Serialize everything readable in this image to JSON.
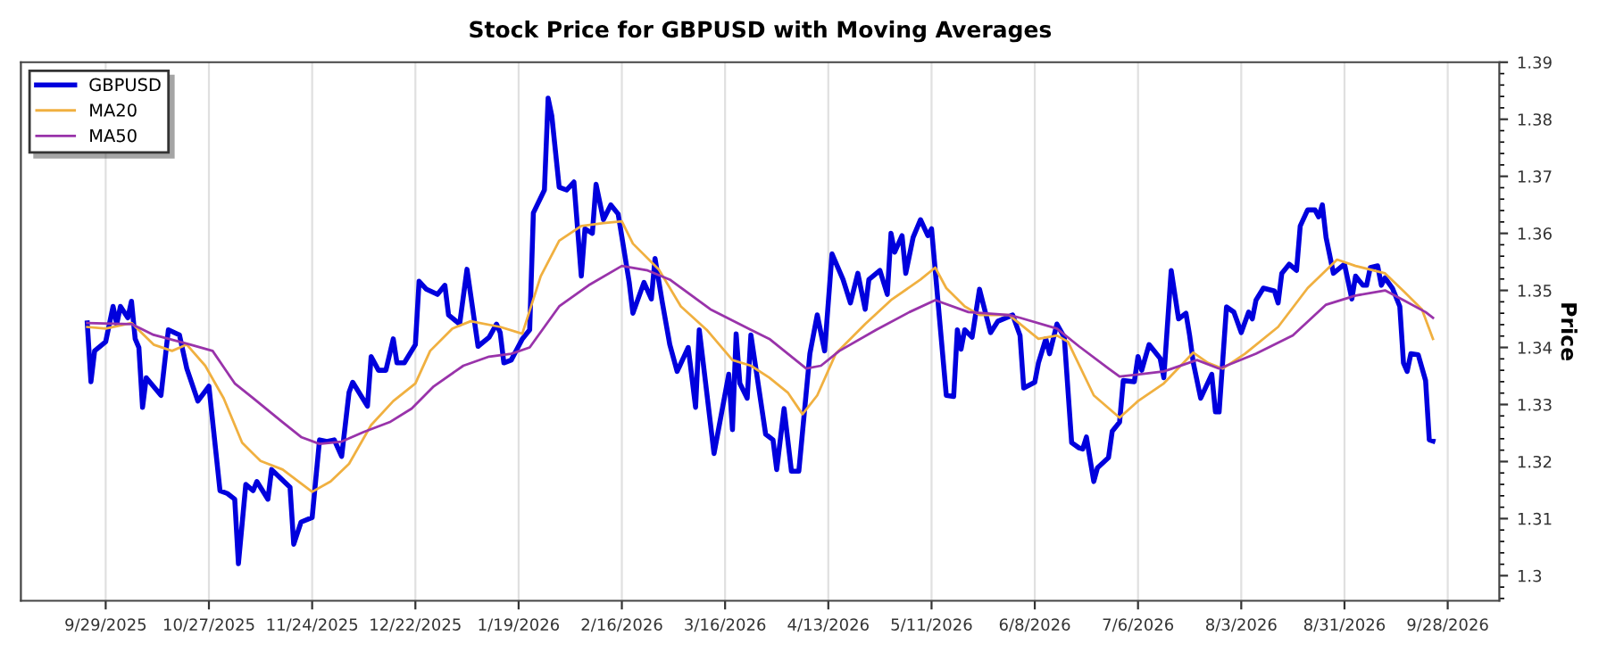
{
  "chart_data": {
    "type": "line",
    "title": "Stock Price for GBPUSD with Moving Averages",
    "ylabel": "Price",
    "xlim": [
      "2025-09-06",
      "2026-10-12"
    ],
    "ylim": [
      1.2956,
      1.39
    ],
    "xticks": [
      {
        "value": "2025-09-29",
        "label": "9/29/2025"
      },
      {
        "value": "2025-10-27",
        "label": "10/27/2025"
      },
      {
        "value": "2025-11-24",
        "label": "11/24/2025"
      },
      {
        "value": "2025-12-22",
        "label": "12/22/2025"
      },
      {
        "value": "2026-01-19",
        "label": "1/19/2026"
      },
      {
        "value": "2026-02-16",
        "label": "2/16/2026"
      },
      {
        "value": "2026-03-16",
        "label": "3/16/2026"
      },
      {
        "value": "2026-04-13",
        "label": "4/13/2026"
      },
      {
        "value": "2026-05-11",
        "label": "5/11/2026"
      },
      {
        "value": "2026-06-08",
        "label": "6/8/2026"
      },
      {
        "value": "2026-07-06",
        "label": "7/6/2026"
      },
      {
        "value": "2026-08-03",
        "label": "8/3/2026"
      },
      {
        "value": "2026-08-31",
        "label": "8/31/2026"
      },
      {
        "value": "2026-09-28",
        "label": "9/28/2026"
      }
    ],
    "yticks": [
      1.3,
      1.31,
      1.32,
      1.33,
      1.34,
      1.35,
      1.36,
      1.37,
      1.38,
      1.39
    ],
    "grid": "x",
    "legend": "top left",
    "series": [
      {
        "name": "GBPUSD",
        "color": "#0000dd",
        "x": [
          "2025-09-24",
          "2025-09-25",
          "2025-09-26",
          "2025-09-29",
          "2025-10-01",
          "2025-10-02",
          "2025-10-03",
          "2025-10-05",
          "2025-10-06",
          "2025-10-07",
          "2025-10-08",
          "2025-10-09",
          "2025-10-10",
          "2025-10-14",
          "2025-10-16",
          "2025-10-19",
          "2025-10-21",
          "2025-10-24",
          "2025-10-27",
          "2025-10-30",
          "2025-11-01",
          "2025-11-03",
          "2025-11-04",
          "2025-11-06",
          "2025-11-08",
          "2025-11-09",
          "2025-11-12",
          "2025-11-13",
          "2025-11-18",
          "2025-11-19",
          "2025-11-21",
          "2025-11-24",
          "2025-11-26",
          "2025-11-28",
          "2025-11-30",
          "2025-12-02",
          "2025-12-04",
          "2025-12-05",
          "2025-12-09",
          "2025-12-10",
          "2025-12-12",
          "2025-12-14",
          "2025-12-16",
          "2025-12-17",
          "2025-12-19",
          "2025-12-22",
          "2025-12-23",
          "2025-12-25",
          "2025-12-28",
          "2025-12-30",
          "2025-12-31",
          "2026-01-03",
          "2026-01-05",
          "2026-01-08",
          "2026-01-11",
          "2026-01-13",
          "2026-01-14",
          "2026-01-15",
          "2026-01-17",
          "2026-01-20",
          "2026-01-22",
          "2026-01-23",
          "2026-01-26",
          "2026-01-27",
          "2026-01-28",
          "2026-01-30",
          "2026-02-01",
          "2026-02-03",
          "2026-02-05",
          "2026-02-06",
          "2026-02-08",
          "2026-02-09",
          "2026-02-11",
          "2026-02-13",
          "2026-02-15",
          "2026-02-18",
          "2026-02-19",
          "2026-02-22",
          "2026-02-24",
          "2026-02-25",
          "2026-02-27",
          "2026-03-01",
          "2026-03-03",
          "2026-03-06",
          "2026-03-08",
          "2026-03-09",
          "2026-03-13",
          "2026-03-17",
          "2026-03-18",
          "2026-03-19",
          "2026-03-20",
          "2026-03-22",
          "2026-03-23",
          "2026-03-27",
          "2026-03-29",
          "2026-03-30",
          "2026-04-01",
          "2026-04-03",
          "2026-04-05",
          "2026-04-08",
          "2026-04-10",
          "2026-04-12",
          "2026-04-14",
          "2026-04-17",
          "2026-04-19",
          "2026-04-21",
          "2026-04-23",
          "2026-04-24",
          "2026-04-27",
          "2026-04-29",
          "2026-04-30",
          "2026-05-01",
          "2026-05-03",
          "2026-05-04",
          "2026-05-06",
          "2026-05-08",
          "2026-05-10",
          "2026-05-11",
          "2026-05-15",
          "2026-05-17",
          "2026-05-18",
          "2026-05-19",
          "2026-05-20",
          "2026-05-22",
          "2026-05-24",
          "2026-05-27",
          "2026-05-29",
          "2026-06-02",
          "2026-06-04",
          "2026-06-05",
          "2026-06-08",
          "2026-06-09",
          "2026-06-11",
          "2026-06-12",
          "2026-06-14",
          "2026-06-16",
          "2026-06-18",
          "2026-06-20",
          "2026-06-21",
          "2026-06-22",
          "2026-06-24",
          "2026-06-25",
          "2026-06-28",
          "2026-06-29",
          "2026-07-01",
          "2026-07-02",
          "2026-07-05",
          "2026-07-06",
          "2026-07-07",
          "2026-07-09",
          "2026-07-12",
          "2026-07-13",
          "2026-07-15",
          "2026-07-17",
          "2026-07-19",
          "2026-07-20",
          "2026-07-21",
          "2026-07-23",
          "2026-07-26",
          "2026-07-27",
          "2026-07-28",
          "2026-07-30",
          "2026-08-01",
          "2026-08-03",
          "2026-08-05",
          "2026-08-06",
          "2026-08-07",
          "2026-08-09",
          "2026-08-12",
          "2026-08-13",
          "2026-08-14",
          "2026-08-16",
          "2026-08-18",
          "2026-08-19",
          "2026-08-21",
          "2026-08-23",
          "2026-08-24",
          "2026-08-25",
          "2026-08-26",
          "2026-08-28",
          "2026-08-31",
          "2026-09-02",
          "2026-09-03",
          "2026-09-05",
          "2026-09-06",
          "2026-09-07",
          "2026-09-09",
          "2026-09-10",
          "2026-09-11",
          "2026-09-13",
          "2026-09-15",
          "2026-09-16",
          "2026-09-17",
          "2026-09-18",
          "2026-09-20",
          "2026-09-22",
          "2026-09-23",
          "2026-09-24"
        ],
        "values": [
          1.3443,
          1.334,
          1.3394,
          1.341,
          1.3472,
          1.3441,
          1.3472,
          1.3452,
          1.3481,
          1.3415,
          1.34,
          1.3295,
          1.3347,
          1.3316,
          1.3431,
          1.3422,
          1.3363,
          1.3306,
          1.3332,
          1.3149,
          1.3144,
          1.3134,
          1.3021,
          1.316,
          1.3149,
          1.3165,
          1.3134,
          1.3186,
          1.3155,
          1.3055,
          1.3094,
          1.3102,
          1.3238,
          1.3235,
          1.3238,
          1.3209,
          1.3321,
          1.3339,
          1.3297,
          1.3384,
          1.336,
          1.336,
          1.3415,
          1.3373,
          1.3373,
          1.3405,
          1.3516,
          1.3502,
          1.3493,
          1.3509,
          1.3457,
          1.3441,
          1.3537,
          1.3402,
          1.3418,
          1.3441,
          1.3426,
          1.3373,
          1.3378,
          1.3415,
          1.3431,
          1.3636,
          1.3676,
          1.3837,
          1.3806,
          1.3681,
          1.3676,
          1.369,
          1.3525,
          1.3608,
          1.36,
          1.3686,
          1.3624,
          1.365,
          1.3634,
          1.3514,
          1.346,
          1.3514,
          1.3485,
          1.3556,
          1.3478,
          1.3405,
          1.3358,
          1.34,
          1.3295,
          1.3431,
          1.3214,
          1.3353,
          1.3256,
          1.3424,
          1.3337,
          1.3311,
          1.3422,
          1.3248,
          1.3238,
          1.3186,
          1.3293,
          1.3183,
          1.3183,
          1.3389,
          1.3457,
          1.3394,
          1.3564,
          1.3519,
          1.3478,
          1.353,
          1.3467,
          1.3519,
          1.3535,
          1.3493,
          1.36,
          1.3567,
          1.3596,
          1.353,
          1.3593,
          1.3624,
          1.3596,
          1.3608,
          1.3316,
          1.3314,
          1.3431,
          1.3397,
          1.3431,
          1.3418,
          1.3502,
          1.3426,
          1.3446,
          1.3457,
          1.3421,
          1.3329,
          1.3339,
          1.3373,
          1.3415,
          1.3389,
          1.3441,
          1.3418,
          1.3233,
          1.3224,
          1.3222,
          1.3243,
          1.3165,
          1.3189,
          1.3207,
          1.3253,
          1.3269,
          1.3342,
          1.334,
          1.3384,
          1.336,
          1.3405,
          1.3381,
          1.3347,
          1.3535,
          1.345,
          1.346,
          1.3421,
          1.3373,
          1.3311,
          1.3353,
          1.3287,
          1.3287,
          1.3471,
          1.3462,
          1.3426,
          1.3462,
          1.345,
          1.3483,
          1.3504,
          1.3499,
          1.3478,
          1.353,
          1.3546,
          1.3535,
          1.3613,
          1.3641,
          1.3641,
          1.3629,
          1.365,
          1.3593,
          1.353,
          1.3546,
          1.3485,
          1.3525,
          1.3509,
          1.3509,
          1.354,
          1.3543,
          1.3509,
          1.3522,
          1.3504,
          1.3472,
          1.3373,
          1.3358,
          1.3389,
          1.3387,
          1.3342,
          1.3238,
          1.3236
        ]
      },
      {
        "name": "MA20",
        "color": "#f0b040",
        "x": [
          "2025-09-24",
          "2025-09-29",
          "2025-10-06",
          "2025-10-12",
          "2025-10-17",
          "2025-10-21",
          "2025-10-26",
          "2025-10-31",
          "2025-11-05",
          "2025-11-10",
          "2025-11-16",
          "2025-11-24",
          "2025-11-29",
          "2025-12-04",
          "2025-12-10",
          "2025-12-16",
          "2025-12-22",
          "2025-12-26",
          "2026-01-01",
          "2026-01-06",
          "2026-01-14",
          "2026-01-20",
          "2026-01-25",
          "2026-01-30",
          "2026-02-05",
          "2026-02-11",
          "2026-02-16",
          "2026-02-19",
          "2026-02-26",
          "2026-03-04",
          "2026-03-11",
          "2026-03-18",
          "2026-03-23",
          "2026-03-28",
          "2026-04-02",
          "2026-04-06",
          "2026-04-10",
          "2026-04-15",
          "2026-04-23",
          "2026-04-30",
          "2026-05-08",
          "2026-05-12",
          "2026-05-15",
          "2026-05-20",
          "2026-05-24",
          "2026-06-01",
          "2026-06-09",
          "2026-06-14",
          "2026-06-17",
          "2026-06-24",
          "2026-07-01",
          "2026-07-06",
          "2026-07-13",
          "2026-07-21",
          "2026-07-25",
          "2026-07-29",
          "2026-08-04",
          "2026-08-13",
          "2026-08-21",
          "2026-08-29",
          "2026-09-03",
          "2026-09-11",
          "2026-09-16",
          "2026-09-21",
          "2026-09-24"
        ],
        "values": [
          1.3436,
          1.3433,
          1.3443,
          1.3405,
          1.3394,
          1.3405,
          1.3368,
          1.3311,
          1.3233,
          1.3201,
          1.3186,
          1.3147,
          1.3165,
          1.3196,
          1.3264,
          1.3306,
          1.3337,
          1.3394,
          1.3433,
          1.3446,
          1.3436,
          1.3424,
          1.3525,
          1.3587,
          1.3613,
          1.3618,
          1.3621,
          1.3582,
          1.3537,
          1.3472,
          1.3431,
          1.3378,
          1.3368,
          1.3347,
          1.3321,
          1.3283,
          1.3316,
          1.3389,
          1.3441,
          1.3483,
          1.3519,
          1.354,
          1.3504,
          1.3472,
          1.3457,
          1.3457,
          1.3415,
          1.3421,
          1.341,
          1.3316,
          1.3277,
          1.3306,
          1.3337,
          1.3391,
          1.3373,
          1.3363,
          1.3389,
          1.3436,
          1.3504,
          1.3554,
          1.3543,
          1.353,
          1.3499,
          1.3467,
          1.3415
        ]
      },
      {
        "name": "MA50",
        "color": "#9933aa",
        "x": [
          "2025-09-24",
          "2025-10-06",
          "2025-10-12",
          "2025-10-22",
          "2025-10-28",
          "2025-11-03",
          "2025-11-08",
          "2025-11-16",
          "2025-11-21",
          "2025-11-26",
          "2025-12-02",
          "2025-12-08",
          "2025-12-15",
          "2025-12-21",
          "2025-12-27",
          "2026-01-04",
          "2026-01-11",
          "2026-01-17",
          "2026-01-22",
          "2026-01-30",
          "2026-02-07",
          "2026-02-16",
          "2026-02-23",
          "2026-03-01",
          "2026-03-12",
          "2026-03-23",
          "2026-03-28",
          "2026-04-07",
          "2026-04-11",
          "2026-04-16",
          "2026-04-26",
          "2026-05-05",
          "2026-05-12",
          "2026-05-21",
          "2026-06-01",
          "2026-06-04",
          "2026-06-14",
          "2026-06-20",
          "2026-06-28",
          "2026-07-01",
          "2026-07-13",
          "2026-07-22",
          "2026-07-28",
          "2026-08-07",
          "2026-08-17",
          "2026-08-26",
          "2026-09-03",
          "2026-09-11",
          "2026-09-16",
          "2026-09-22",
          "2026-09-24"
        ],
        "values": [
          1.3443,
          1.3441,
          1.3422,
          1.3405,
          1.3394,
          1.3337,
          1.3311,
          1.3269,
          1.3243,
          1.3231,
          1.3235,
          1.3252,
          1.3269,
          1.3293,
          1.3332,
          1.3368,
          1.3384,
          1.3389,
          1.34,
          1.3472,
          1.3509,
          1.3543,
          1.3535,
          1.3519,
          1.3467,
          1.3431,
          1.3415,
          1.3363,
          1.3368,
          1.3394,
          1.3431,
          1.3462,
          1.3483,
          1.3462,
          1.3457,
          1.3452,
          1.3433,
          1.3402,
          1.3363,
          1.3349,
          1.3358,
          1.3378,
          1.3363,
          1.3389,
          1.3421,
          1.3475,
          1.3491,
          1.35,
          1.3483,
          1.3462,
          1.3452
        ]
      }
    ]
  }
}
